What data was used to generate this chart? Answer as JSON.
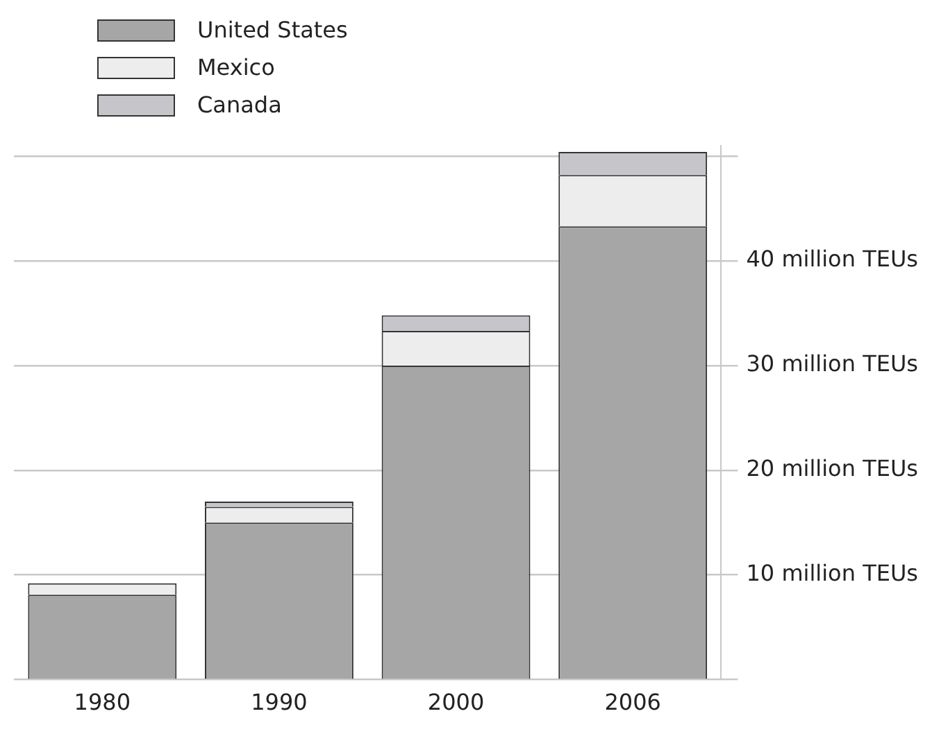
{
  "chart_data": {
    "type": "bar",
    "stacked": true,
    "categories": [
      "1980",
      "1990",
      "2000",
      "2006"
    ],
    "series": [
      {
        "name": "United States",
        "color": "#a6a6a6",
        "values": [
          8.1,
          15.0,
          30.0,
          43.3
        ]
      },
      {
        "name": "Mexico",
        "color": "#ededed",
        "values": [
          1.1,
          1.5,
          3.3,
          4.9
        ]
      },
      {
        "name": "Canada",
        "color": "#c6c6ca",
        "values": [
          null,
          0.5,
          1.5,
          2.2
        ]
      }
    ],
    "ylim": [
      0,
      51
    ],
    "yticks": [
      {
        "value": 0,
        "label": null
      },
      {
        "value": 10,
        "label": "10 million TEUs"
      },
      {
        "value": 20,
        "label": "20 million TEUs"
      },
      {
        "value": 30,
        "label": "30 million TEUs"
      },
      {
        "value": 40,
        "label": "40 million TEUs"
      },
      {
        "value": 50,
        "label": null
      }
    ],
    "grid": "y",
    "legend": "top left"
  }
}
